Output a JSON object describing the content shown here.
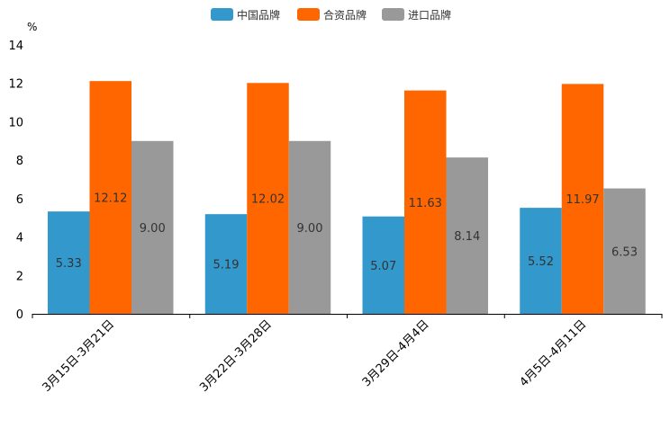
{
  "chart_data": {
    "type": "bar",
    "unit": "%",
    "categories": [
      "3月15日-3月21日",
      "3月22日-3月28日",
      "3月29日-4月4日",
      "4月5日-4月11日"
    ],
    "series": [
      {
        "name": "中国品牌",
        "color": "#3399cc",
        "values": [
          5.33,
          5.19,
          5.07,
          5.52
        ],
        "labels": [
          "5.33",
          "5.19",
          "5.07",
          "5.52"
        ]
      },
      {
        "name": "合资品牌",
        "color": "#ff6600",
        "values": [
          12.12,
          12.02,
          11.63,
          11.97
        ],
        "labels": [
          "12.12",
          "12.02",
          "11.63",
          "11.97"
        ]
      },
      {
        "name": "进口品牌",
        "color": "#999999",
        "values": [
          9.0,
          9.0,
          8.14,
          6.53
        ],
        "labels": [
          "9.00",
          "9.00",
          "8.14",
          "6.53"
        ]
      }
    ],
    "ylim": [
      0,
      14
    ],
    "yticks": [
      "0",
      "2",
      "4",
      "6",
      "8",
      "10",
      "12",
      "14"
    ],
    "legend": "top-center"
  }
}
